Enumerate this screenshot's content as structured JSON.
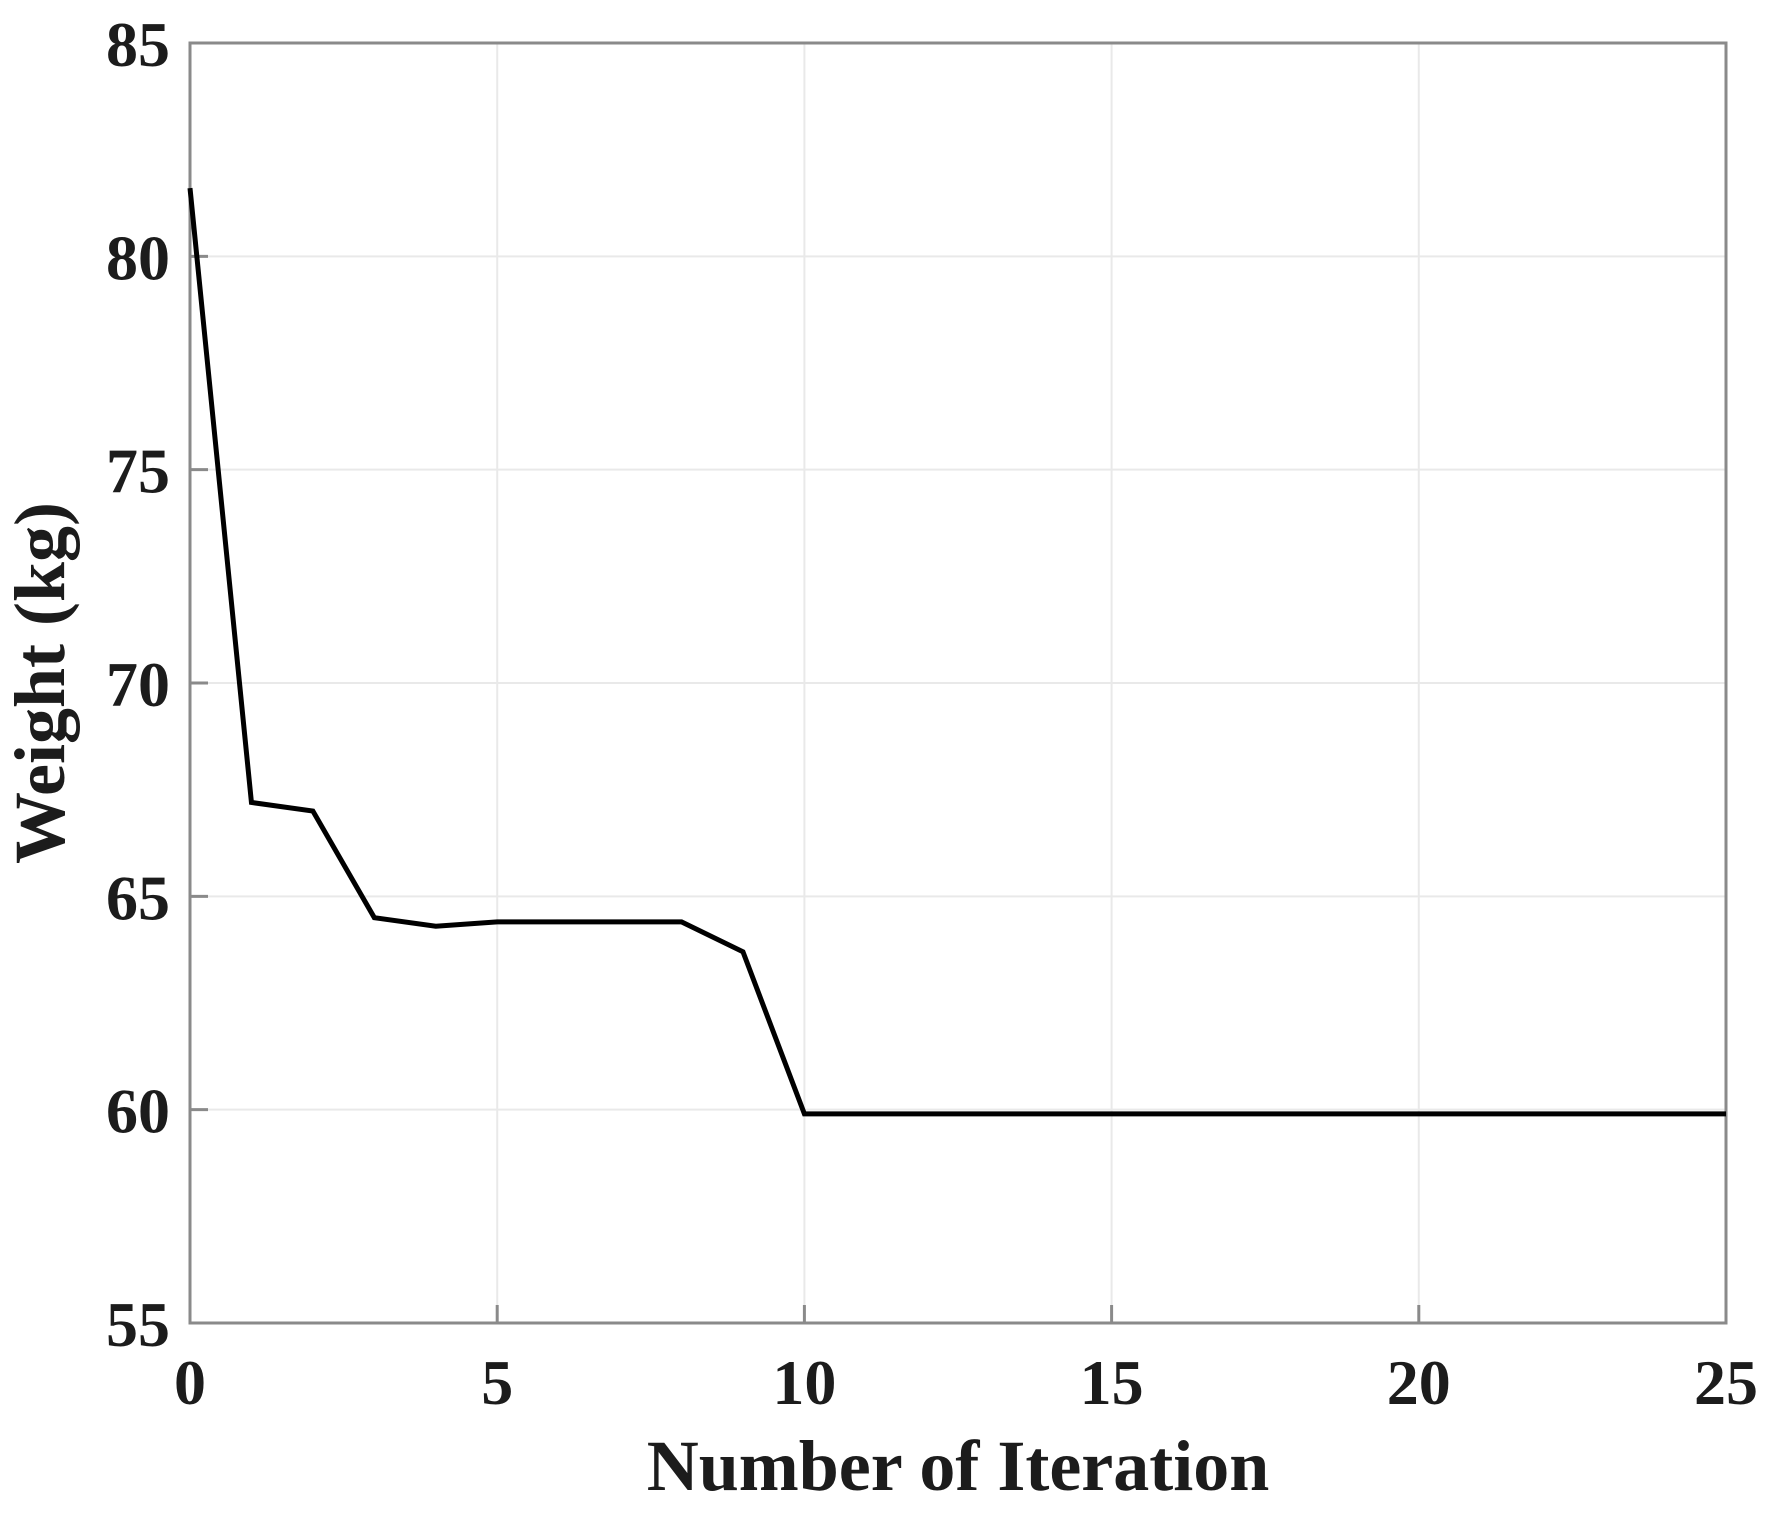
{
  "figure": {
    "background": "#ffffff"
  },
  "chart_data": {
    "type": "line",
    "title": "",
    "xlabel": "Number of Iteration",
    "ylabel": "Weight (kg)",
    "x": [
      0,
      1,
      2,
      3,
      4,
      5,
      6,
      7,
      8,
      9,
      10,
      11,
      12,
      13,
      14,
      15,
      16,
      17,
      18,
      19,
      20,
      21,
      22,
      23,
      24,
      25
    ],
    "y": [
      81.6,
      67.2,
      67.0,
      64.5,
      64.3,
      64.4,
      64.4,
      64.4,
      64.4,
      63.7,
      59.9,
      59.9,
      59.9,
      59.9,
      59.9,
      59.9,
      59.9,
      59.9,
      59.9,
      59.9,
      59.9,
      59.9,
      59.9,
      59.9,
      59.9,
      59.9
    ],
    "xlim": [
      0,
      25
    ],
    "ylim": [
      55,
      85
    ],
    "xticks": [
      0,
      5,
      10,
      15,
      20,
      25
    ],
    "yticks": [
      55,
      60,
      65,
      70,
      75,
      80,
      85
    ],
    "grid": true,
    "legend_position": "none",
    "line": {
      "color": "#000000",
      "width": 5
    },
    "colors": {
      "axis": "#8a8a8a",
      "grid": "#e9e9e9",
      "text": "#1c1c1c",
      "background": "#ffffff"
    }
  }
}
